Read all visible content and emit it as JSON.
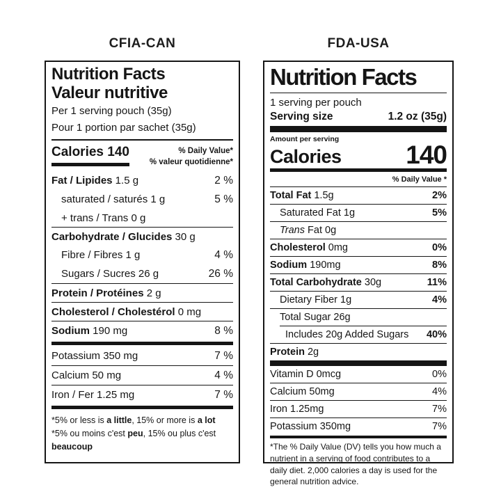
{
  "titles": {
    "left": "CFIA-CAN",
    "right": "FDA-USA"
  },
  "colors": {
    "ink": "#151515",
    "background": "#ffffff"
  },
  "cfia": {
    "heading_en": "Nutrition Facts",
    "heading_fr": "Valeur nutritive",
    "serving_en": "Per 1 serving pouch (35g)",
    "serving_fr": "Pour 1 portion par sachet (35g)",
    "calories_label": "Calories 140",
    "dv_header_en": "% Daily Value*",
    "dv_header_fr": "% valeur quotidienne*",
    "rows": [
      {
        "bold": "Fat / Lipides",
        "rest": " 1.5 g",
        "dv": "2 %"
      },
      {
        "rest": "saturated / saturés 1 g",
        "dv": "5 %"
      },
      {
        "rest": "+ trans / Trans 0 g"
      },
      {
        "bold": "Carbohydrate / Glucides",
        "rest": " 30 g"
      },
      {
        "rest": "Fibre / Fibres 1 g",
        "dv": "4 %"
      },
      {
        "rest": "Sugars / Sucres 26 g",
        "dv": "26 %"
      },
      {
        "bold": "Protein / Protéines",
        "rest": " 2 g"
      },
      {
        "bold": "Cholesterol / Cholestérol",
        "rest": " 0 mg"
      },
      {
        "bold": "Sodium",
        "rest": " 190 mg",
        "dv": "8 %"
      },
      {
        "rest": "Potassium 350 mg",
        "dv": "7 %"
      },
      {
        "rest": "Calcium 50 mg",
        "dv": "4 %"
      },
      {
        "rest": "Iron / Fer 1.25 mg",
        "dv": "7 %"
      }
    ],
    "footnote_en": {
      "p1": "*5% or less is ",
      "b1": "a little",
      "p2": ", 15% or more is ",
      "b2": "a lot"
    },
    "footnote_fr": {
      "p1": "*5% ou moins c'est ",
      "b1": "peu",
      "p2": ", 15% ou plus c'est ",
      "b2": "beaucoup"
    }
  },
  "fda": {
    "heading": "Nutrition Facts",
    "servings_per": "1 serving per pouch",
    "serving_size_label": "Serving size",
    "serving_size_value": "1.2 oz (35g)",
    "amount_label": "Amount per serving",
    "calories_label": "Calories",
    "calories_value": "140",
    "dv_header": "% Daily Value *",
    "rows": [
      {
        "bold": "Total Fat",
        "rest": " 1.5g",
        "dv": "2%"
      },
      {
        "rest": "Saturated Fat 1g",
        "dv": "5%"
      },
      {
        "italic": "Trans",
        "rest": " Fat 0g"
      },
      {
        "bold": "Cholesterol",
        "rest": " 0mg",
        "dv": "0%"
      },
      {
        "bold": "Sodium",
        "rest": " 190mg",
        "dv": "8%"
      },
      {
        "bold": "Total Carbohydrate",
        "rest": " 30g",
        "dv": "11%"
      },
      {
        "rest": "Dietary Fiber 1g",
        "dv": "4%"
      },
      {
        "rest": "Total Sugar 26g"
      },
      {
        "rest": "Includes 20g Added Sugars",
        "dv": "40%"
      },
      {
        "bold": "Protein",
        "rest": " 2g"
      }
    ],
    "vitamins": [
      {
        "rest": "Vitamin D 0mcg",
        "dv": "0%"
      },
      {
        "rest": "Calcium 50mg",
        "dv": "4%"
      },
      {
        "rest": "Iron 1.25mg",
        "dv": "7%"
      },
      {
        "rest": "Potassium 350mg",
        "dv": "7%"
      }
    ],
    "footnote": "*The % Daily Value (DV) tells you how much a nutrient in a serving of food contributes to a daily diet. 2,000 calories a day is used for the general nutrition advice."
  }
}
